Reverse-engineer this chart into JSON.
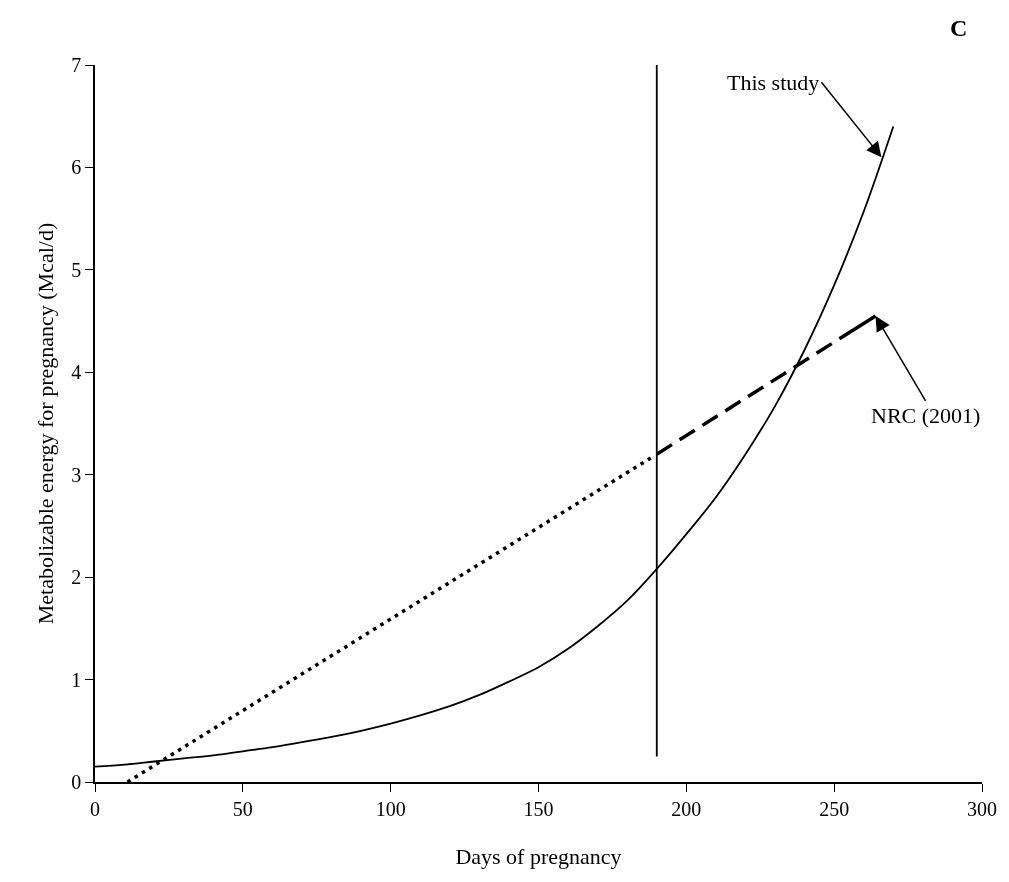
{
  "chart_data": {
    "type": "line",
    "xlabel": "Days of pregnancy",
    "ylabel": "Metabolizable energy for pregnancy (Mcal/d)",
    "xlim": [
      0,
      300
    ],
    "xticks": [
      0,
      50,
      100,
      150,
      200,
      250,
      300
    ],
    "ylim": [
      0,
      7
    ],
    "yticks": [
      0,
      1,
      2,
      3,
      4,
      5,
      6,
      7
    ],
    "series": [
      {
        "color": "#000000",
        "line_style": "solid",
        "x": [
          0,
          10,
          20,
          30,
          40,
          50,
          60,
          70,
          80,
          90,
          100,
          110,
          120,
          130,
          140,
          150,
          160,
          170,
          180,
          190,
          200,
          210,
          220,
          230,
          240,
          250,
          260,
          270
        ],
        "values": [
          0.15,
          0.17,
          0.2,
          0.23,
          0.26,
          0.3,
          0.34,
          0.39,
          0.44,
          0.5,
          0.57,
          0.65,
          0.74,
          0.85,
          0.98,
          1.12,
          1.3,
          1.52,
          1.77,
          2.08,
          2.42,
          2.78,
          3.2,
          3.67,
          4.22,
          4.85,
          5.57,
          6.4
        ]
      },
      {
        "color": "#000000",
        "line_style": [
          "dotted",
          "dashed"
        ],
        "x": [
          11,
          190,
          264
        ],
        "values": [
          0,
          3.2,
          4.55
        ]
      },
      {
        "color": "#000000",
        "line_style": "solid",
        "x": [
          190,
          190
        ],
        "values": [
          0.25,
          7
        ]
      }
    ],
    "annotations": [
      {
        "text": "This study",
        "x": 266,
        "y": 6.1
      },
      {
        "text": "NRC (2001)",
        "x": 264,
        "y": 4.55
      },
      "C"
    ]
  }
}
